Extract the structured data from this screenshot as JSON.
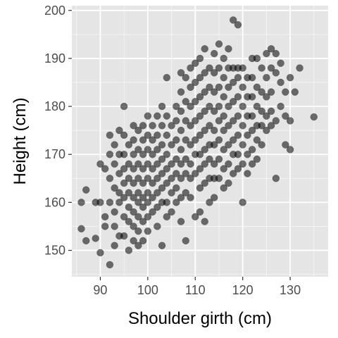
{
  "chart_data": {
    "type": "scatter",
    "xlabel": "Shoulder girth (cm)",
    "ylabel": "Height (cm)",
    "xlim": [
      84,
      138
    ],
    "ylim": [
      144.5,
      201
    ],
    "xticks": [
      90,
      100,
      110,
      120,
      130
    ],
    "yticks": [
      150,
      160,
      170,
      180,
      190,
      200
    ],
    "grid": true,
    "colors": {
      "panel": "#e5e5e5",
      "grid_major": "#ffffff",
      "point": "#000000",
      "tick_text": "#4d4d4d",
      "axis_text": "#000000"
    },
    "point_opacity": 0.55,
    "points": [
      [
        86,
        160
      ],
      [
        86,
        154.5
      ],
      [
        87,
        152
      ],
      [
        87,
        162.6
      ],
      [
        89,
        160
      ],
      [
        89,
        152.5
      ],
      [
        90,
        160
      ],
      [
        90,
        168
      ],
      [
        90,
        149.5
      ],
      [
        91,
        157
      ],
      [
        91,
        155
      ],
      [
        91,
        167
      ],
      [
        92,
        147
      ],
      [
        92,
        160
      ],
      [
        92,
        165
      ],
      [
        92,
        170
      ],
      [
        92,
        174
      ],
      [
        93,
        172
      ],
      [
        93,
        168
      ],
      [
        93,
        163
      ],
      [
        93,
        158
      ],
      [
        93,
        155
      ],
      [
        93,
        151
      ],
      [
        94,
        175
      ],
      [
        94,
        170
      ],
      [
        94,
        166
      ],
      [
        94,
        162
      ],
      [
        94,
        160
      ],
      [
        94,
        153
      ],
      [
        95,
        180
      ],
      [
        95,
        174
      ],
      [
        95,
        170
      ],
      [
        95,
        167
      ],
      [
        95,
        164
      ],
      [
        95,
        161
      ],
      [
        95,
        157
      ],
      [
        95,
        153
      ],
      [
        96,
        172
      ],
      [
        96,
        168
      ],
      [
        96,
        165
      ],
      [
        96,
        162
      ],
      [
        96,
        159
      ],
      [
        96,
        156
      ],
      [
        96,
        150
      ],
      [
        97,
        176
      ],
      [
        97,
        173
      ],
      [
        97,
        170
      ],
      [
        97,
        167
      ],
      [
        97,
        164
      ],
      [
        97,
        161
      ],
      [
        97,
        158
      ],
      [
        97,
        155
      ],
      [
        97,
        152
      ],
      [
        98,
        175
      ],
      [
        98,
        171
      ],
      [
        98,
        168
      ],
      [
        98,
        165
      ],
      [
        98,
        162
      ],
      [
        98,
        160
      ],
      [
        98,
        157
      ],
      [
        98,
        154
      ],
      [
        98,
        151
      ],
      [
        99,
        176
      ],
      [
        99,
        173
      ],
      [
        99,
        170
      ],
      [
        99,
        167
      ],
      [
        99,
        164
      ],
      [
        99,
        161
      ],
      [
        99,
        159
      ],
      [
        99,
        156
      ],
      [
        99,
        152
      ],
      [
        100,
        178
      ],
      [
        100,
        174
      ],
      [
        100,
        171
      ],
      [
        100,
        168
      ],
      [
        100,
        165
      ],
      [
        100,
        162
      ],
      [
        100,
        160
      ],
      [
        100,
        157
      ],
      [
        100,
        154
      ],
      [
        101,
        176
      ],
      [
        101,
        173
      ],
      [
        101,
        170
      ],
      [
        101,
        167
      ],
      [
        101,
        164
      ],
      [
        101,
        161
      ],
      [
        101,
        158
      ],
      [
        102,
        178
      ],
      [
        102,
        174
      ],
      [
        102,
        171
      ],
      [
        102,
        168
      ],
      [
        102,
        165
      ],
      [
        102,
        162
      ],
      [
        102,
        159
      ],
      [
        102,
        155
      ],
      [
        103,
        180
      ],
      [
        103,
        176
      ],
      [
        103,
        172
      ],
      [
        103,
        169
      ],
      [
        103,
        166
      ],
      [
        103,
        163
      ],
      [
        103,
        160
      ],
      [
        103,
        151
      ],
      [
        104,
        186
      ],
      [
        104,
        178
      ],
      [
        104,
        174
      ],
      [
        104,
        170
      ],
      [
        104,
        167
      ],
      [
        104,
        164
      ],
      [
        104,
        160
      ],
      [
        104,
        157
      ],
      [
        105,
        176
      ],
      [
        105,
        172
      ],
      [
        105,
        168
      ],
      [
        105,
        165
      ],
      [
        105,
        162
      ],
      [
        105,
        158
      ],
      [
        106,
        180
      ],
      [
        106,
        177
      ],
      [
        106,
        173
      ],
      [
        106,
        169
      ],
      [
        106,
        166
      ],
      [
        106,
        163
      ],
      [
        106,
        160
      ],
      [
        107,
        187
      ],
      [
        107,
        183
      ],
      [
        107,
        179
      ],
      [
        107,
        175
      ],
      [
        107,
        171
      ],
      [
        107,
        168
      ],
      [
        107,
        165
      ],
      [
        107,
        161
      ],
      [
        107,
        156
      ],
      [
        108,
        186
      ],
      [
        108,
        181
      ],
      [
        108,
        177
      ],
      [
        108,
        173
      ],
      [
        108,
        169
      ],
      [
        108,
        166
      ],
      [
        108,
        162
      ],
      [
        108,
        152
      ],
      [
        109,
        188
      ],
      [
        109,
        184
      ],
      [
        109,
        180
      ],
      [
        109,
        176
      ],
      [
        109,
        172
      ],
      [
        109,
        168
      ],
      [
        109,
        165
      ],
      [
        109,
        161
      ],
      [
        110,
        189
      ],
      [
        110,
        185
      ],
      [
        110,
        181
      ],
      [
        110,
        177
      ],
      [
        110,
        173
      ],
      [
        110,
        170
      ],
      [
        110,
        166
      ],
      [
        110,
        157
      ],
      [
        111,
        190
      ],
      [
        111,
        186
      ],
      [
        111,
        182
      ],
      [
        111,
        178
      ],
      [
        111,
        174
      ],
      [
        111,
        170
      ],
      [
        111,
        167
      ],
      [
        111,
        163
      ],
      [
        111,
        158
      ],
      [
        112,
        192
      ],
      [
        112,
        187
      ],
      [
        112,
        183
      ],
      [
        112,
        179
      ],
      [
        112,
        175
      ],
      [
        112,
        171
      ],
      [
        112,
        168
      ],
      [
        112,
        164
      ],
      [
        112,
        156
      ],
      [
        113,
        188
      ],
      [
        113,
        184
      ],
      [
        113,
        180
      ],
      [
        113,
        176
      ],
      [
        113,
        172
      ],
      [
        113,
        169
      ],
      [
        113,
        165
      ],
      [
        113,
        160
      ],
      [
        114,
        191
      ],
      [
        114,
        187
      ],
      [
        114,
        183
      ],
      [
        114,
        179
      ],
      [
        114,
        175
      ],
      [
        114,
        172
      ],
      [
        114,
        168
      ],
      [
        114,
        165
      ],
      [
        114,
        161
      ],
      [
        115,
        193
      ],
      [
        115,
        188
      ],
      [
        115,
        184
      ],
      [
        115,
        180
      ],
      [
        115,
        177
      ],
      [
        115,
        173
      ],
      [
        115,
        169
      ],
      [
        115,
        165
      ],
      [
        116,
        190
      ],
      [
        116,
        186
      ],
      [
        116,
        182
      ],
      [
        116,
        178
      ],
      [
        116,
        175
      ],
      [
        116,
        171
      ],
      [
        116,
        167
      ],
      [
        116,
        163
      ],
      [
        117,
        192
      ],
      [
        117,
        188
      ],
      [
        117,
        184
      ],
      [
        117,
        180
      ],
      [
        117,
        176
      ],
      [
        117,
        172
      ],
      [
        117,
        168
      ],
      [
        117,
        164
      ],
      [
        118,
        198
      ],
      [
        118,
        188
      ],
      [
        118,
        185
      ],
      [
        118,
        181
      ],
      [
        118,
        177
      ],
      [
        118,
        173
      ],
      [
        118,
        170
      ],
      [
        118,
        166
      ],
      [
        119,
        197
      ],
      [
        119,
        188
      ],
      [
        119,
        186
      ],
      [
        119,
        182
      ],
      [
        119,
        178
      ],
      [
        119,
        174
      ],
      [
        119,
        170
      ],
      [
        119,
        167
      ],
      [
        120,
        188
      ],
      [
        120,
        184
      ],
      [
        120,
        180
      ],
      [
        120,
        176
      ],
      [
        120,
        172
      ],
      [
        120,
        168
      ],
      [
        120,
        160
      ],
      [
        121,
        186
      ],
      [
        121,
        182
      ],
      [
        121,
        178
      ],
      [
        121,
        174
      ],
      [
        121,
        170
      ],
      [
        121,
        166
      ],
      [
        122,
        190
      ],
      [
        122,
        186
      ],
      [
        122,
        182
      ],
      [
        122,
        178
      ],
      [
        122,
        175
      ],
      [
        122,
        171
      ],
      [
        122,
        168
      ],
      [
        123,
        190
      ],
      [
        123,
        184
      ],
      [
        123,
        180
      ],
      [
        123,
        176
      ],
      [
        123,
        173
      ],
      [
        123,
        169
      ],
      [
        124,
        188
      ],
      [
        124,
        183
      ],
      [
        124,
        179
      ],
      [
        124,
        176
      ],
      [
        124,
        172
      ],
      [
        125,
        191
      ],
      [
        125,
        186
      ],
      [
        125,
        182
      ],
      [
        125,
        178
      ],
      [
        125,
        175
      ],
      [
        126,
        192
      ],
      [
        126,
        188
      ],
      [
        126,
        183
      ],
      [
        126,
        179
      ],
      [
        126,
        176
      ],
      [
        127,
        191
      ],
      [
        127,
        187
      ],
      [
        127,
        177
      ],
      [
        127,
        165
      ],
      [
        128,
        189
      ],
      [
        128,
        185
      ],
      [
        128,
        180
      ],
      [
        129,
        183
      ],
      [
        129,
        178
      ],
      [
        129,
        172
      ],
      [
        130,
        186
      ],
      [
        130,
        177
      ],
      [
        130,
        171
      ],
      [
        131,
        183
      ],
      [
        132,
        188
      ],
      [
        135,
        177.8
      ]
    ]
  }
}
